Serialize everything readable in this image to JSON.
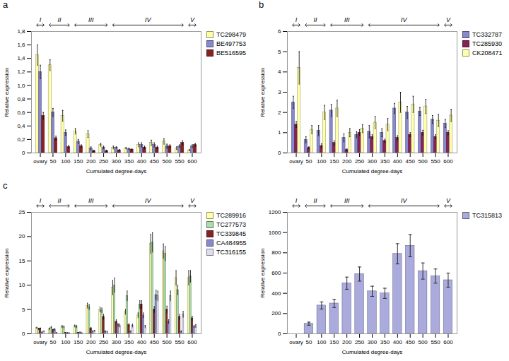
{
  "chart_data": [
    {
      "type": "bar",
      "title": "a",
      "categories": [
        "ovary",
        "50",
        "100",
        "150",
        "200",
        "250",
        "300",
        "350",
        "400",
        "450",
        "500",
        "550",
        "600"
      ],
      "xlabel": "Cumulated degree-days",
      "ylabel": "Relative expression",
      "ylim": [
        0,
        1.8
      ],
      "yticks": [
        0,
        {
          "value": 0.2,
          "label": "0,2"
        },
        {
          "value": 0.4,
          "label": "0,4"
        },
        {
          "value": 0.6,
          "label": "0,6"
        },
        {
          "value": 0.8,
          "label": "0,8"
        },
        {
          "value": 1.0,
          "label": "1,0"
        },
        {
          "value": 1.2,
          "label": "1,2"
        },
        {
          "value": 1.4,
          "label": "1,4"
        },
        {
          "value": 1.6,
          "label": "1,6"
        },
        {
          "value": 1.8,
          "label": "1,8"
        }
      ],
      "legend": "upper right",
      "annotations": [
        {
          "text": "I",
          "x_start": "ovary",
          "x_end": "ovary"
        },
        {
          "text": "II",
          "x_start": "50",
          "x_end": "100"
        },
        {
          "text": "III",
          "x_start": "150",
          "x_end": "250"
        },
        {
          "text": "IV",
          "x_start": "300",
          "x_end": "550"
        },
        {
          "text": "V",
          "x_start": "600",
          "x_end": "600"
        }
      ],
      "series": [
        {
          "name": "TC298479",
          "color": "#FFFFAA",
          "values": [
            1.45,
            1.3,
            0.55,
            0.32,
            0.28,
            0.12,
            0.08,
            0.07,
            0.12,
            0.15,
            0.17,
            0.07,
            0.04
          ],
          "errors": [
            0.15,
            0.08,
            0.08,
            0.04,
            0.05,
            0.02,
            0.02,
            0.01,
            0.03,
            0.04,
            0.04,
            0.02,
            0.01
          ]
        },
        {
          "name": "BE497753",
          "color": "#8888CC",
          "values": [
            1.2,
            0.6,
            0.3,
            0.17,
            0.07,
            0.08,
            0.08,
            0.06,
            0.12,
            0.12,
            0.1,
            0.1,
            0.1
          ],
          "errors": [
            0.1,
            0.06,
            0.04,
            0.03,
            0.02,
            0.02,
            0.01,
            0.01,
            0.03,
            0.03,
            0.03,
            0.02,
            0.02
          ]
        },
        {
          "name": "BE516595",
          "color": "#882222",
          "values": [
            0.55,
            0.22,
            0.09,
            0.1,
            0.03,
            0.03,
            0.04,
            0.05,
            0.08,
            0.08,
            0.1,
            0.15,
            0.12
          ],
          "errors": [
            0.05,
            0.03,
            0.02,
            0.02,
            0.01,
            0.01,
            0.01,
            0.01,
            0.02,
            0.02,
            0.02,
            0.03,
            0.02
          ]
        }
      ]
    },
    {
      "type": "bar",
      "title": "b",
      "categories": [
        "ovary",
        "50",
        "100",
        "150",
        "200",
        "250",
        "300",
        "350",
        "400",
        "450",
        "500",
        "550",
        "600"
      ],
      "xlabel": "Cumulated degree-days",
      "ylabel": "Relative expression",
      "ylim": [
        0,
        6
      ],
      "yticks": [
        0,
        1,
        2,
        3,
        4,
        5,
        6
      ],
      "legend": "upper right",
      "annotations": [
        {
          "text": "I",
          "x_start": "ovary",
          "x_end": "ovary"
        },
        {
          "text": "II",
          "x_start": "50",
          "x_end": "100"
        },
        {
          "text": "III",
          "x_start": "150",
          "x_end": "250"
        },
        {
          "text": "IV",
          "x_start": "300",
          "x_end": "550"
        },
        {
          "text": "V",
          "x_start": "600",
          "x_end": "600"
        }
      ],
      "series": [
        {
          "name": "TC332787",
          "color": "#8888CC",
          "values": [
            2.5,
            0.65,
            1.1,
            2.1,
            0.75,
            0.9,
            1.05,
            1.0,
            2.2,
            2.0,
            2.05,
            1.65,
            1.45
          ],
          "errors": [
            0.3,
            0.15,
            0.25,
            0.3,
            0.2,
            0.15,
            0.3,
            0.2,
            0.25,
            0.3,
            0.2,
            0.2,
            0.2
          ]
        },
        {
          "name": "TC285930",
          "color": "#882255",
          "values": [
            1.4,
            0.25,
            0.35,
            0.5,
            0.15,
            1.0,
            0.8,
            0.6,
            0.75,
            0.9,
            1.0,
            0.8,
            1.0
          ],
          "errors": [
            0.15,
            0.05,
            0.1,
            0.1,
            0.05,
            0.15,
            0.1,
            0.08,
            0.1,
            0.1,
            0.12,
            0.1,
            0.1
          ]
        },
        {
          "name": "CK208471",
          "color": "#FFFFAA",
          "values": [
            4.2,
            1.15,
            2.0,
            2.2,
            1.0,
            1.2,
            1.5,
            1.4,
            2.5,
            2.4,
            2.3,
            1.6,
            1.85
          ],
          "errors": [
            0.8,
            0.2,
            0.35,
            0.4,
            0.2,
            0.2,
            0.3,
            0.3,
            0.5,
            0.4,
            0.35,
            0.3,
            0.3
          ]
        }
      ]
    },
    {
      "type": "bar",
      "title": "c",
      "categories": [
        "ovary",
        "50",
        "100",
        "150",
        "200",
        "250",
        "300",
        "350",
        "400",
        "450",
        "500",
        "550",
        "600"
      ],
      "xlabel": "Cumulated degree-days",
      "ylabel": "Relative expression",
      "ylim": [
        0,
        25
      ],
      "yticks": [
        0,
        5,
        10,
        15,
        20,
        25
      ],
      "legend": "upper right",
      "annotations": [
        {
          "text": "I",
          "x_start": "ovary",
          "x_end": "ovary"
        },
        {
          "text": "II",
          "x_start": "50",
          "x_end": "100"
        },
        {
          "text": "III",
          "x_start": "150",
          "x_end": "250"
        },
        {
          "text": "IV",
          "x_start": "300",
          "x_end": "550"
        },
        {
          "text": "V",
          "x_start": "600",
          "x_end": "600"
        }
      ],
      "series": [
        {
          "name": "TC289916",
          "color": "#FFFFAA",
          "values": [
            1.2,
            1.0,
            1.5,
            1.6,
            5.8,
            5.0,
            9.5,
            4.5,
            3.8,
            18.5,
            17.0,
            11.5,
            11.5
          ],
          "errors": [
            0.15,
            0.15,
            0.2,
            0.2,
            0.5,
            0.5,
            1.5,
            0.5,
            0.5,
            2.0,
            1.5,
            1.5,
            1.5
          ]
        },
        {
          "name": "TC277573",
          "color": "#AADDAA",
          "values": [
            1.0,
            1.3,
            1.4,
            1.5,
            5.5,
            4.8,
            10.0,
            7.8,
            6.0,
            18.8,
            16.5,
            9.0,
            11.8
          ],
          "errors": [
            0.12,
            0.2,
            0.2,
            0.2,
            0.5,
            0.5,
            1.5,
            1.0,
            0.8,
            2.0,
            1.5,
            1.0,
            1.2
          ]
        },
        {
          "name": "TC339845",
          "color": "#882222",
          "values": [
            1.1,
            0.8,
            0.2,
            0.2,
            1.1,
            3.5,
            2.5,
            1.8,
            6.0,
            5.0,
            5.0,
            3.5,
            3.2
          ],
          "errors": [
            0.1,
            0.1,
            0.05,
            0.05,
            0.2,
            0.5,
            0.4,
            0.3,
            0.8,
            0.6,
            0.7,
            0.5,
            0.4
          ]
        },
        {
          "name": "CA484955",
          "color": "#8888CC",
          "values": [
            0.3,
            0.9,
            0.15,
            0.3,
            0.5,
            0.5,
            1.8,
            0.5,
            3.8,
            8.0,
            2.5,
            0.5,
            1.5
          ],
          "errors": [
            0.05,
            0.15,
            0.05,
            0.05,
            0.1,
            0.1,
            0.3,
            0.1,
            0.5,
            1.0,
            0.4,
            0.1,
            0.2
          ]
        },
        {
          "name": "TC316155",
          "color": "#DDDDEE",
          "values": [
            0.5,
            0.2,
            0.15,
            0.15,
            0.6,
            0.4,
            1.7,
            1.7,
            1.5,
            7.8,
            7.8,
            4.0,
            1.6
          ],
          "errors": [
            0.07,
            0.05,
            0.04,
            0.04,
            0.1,
            0.08,
            0.3,
            0.3,
            0.25,
            1.0,
            1.0,
            0.6,
            0.3
          ]
        }
      ]
    },
    {
      "type": "bar",
      "categories": [
        "ovary",
        "50",
        "100",
        "150",
        "200",
        "250",
        "300",
        "350",
        "400",
        "450",
        "500",
        "550",
        "600"
      ],
      "xlabel": "Cumulated degree-days",
      "ylabel": "Relative expression",
      "ylim": [
        0,
        1200
      ],
      "yticks": [
        0,
        200,
        400,
        600,
        800,
        1000,
        1200
      ],
      "legend": "upper right",
      "annotations": [
        {
          "text": "I",
          "x_start": "ovary",
          "x_end": "ovary"
        },
        {
          "text": "II",
          "x_start": "50",
          "x_end": "100"
        },
        {
          "text": "III",
          "x_start": "150",
          "x_end": "250"
        },
        {
          "text": "IV",
          "x_start": "300",
          "x_end": "550"
        },
        {
          "text": "V",
          "x_start": "600",
          "x_end": "600"
        }
      ],
      "series": [
        {
          "name": "TC315813",
          "color": "#AAAADD",
          "values": [
            0,
            100,
            280,
            300,
            500,
            590,
            420,
            400,
            790,
            870,
            620,
            570,
            530
          ],
          "errors": [
            0,
            15,
            35,
            40,
            60,
            70,
            50,
            50,
            100,
            110,
            80,
            70,
            70
          ]
        }
      ]
    }
  ]
}
